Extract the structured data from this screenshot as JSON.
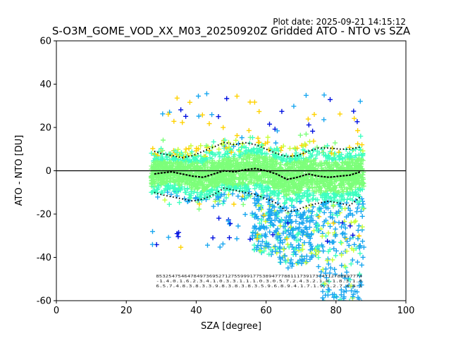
{
  "chart_data": {
    "type": "scatter",
    "title": "S-O3M_GOME_VOD_XX_M03_20250920Z Gridded ATO - NTO vs SZA",
    "plot_date": "Plot date: 2025-09-21 14:15:12",
    "xlabel": "SZA [degree]",
    "ylabel": "ATO - NTO [DU]",
    "xlim": [
      0,
      100
    ],
    "ylim": [
      -60,
      60
    ],
    "xticks": [
      0,
      20,
      40,
      60,
      80,
      100
    ],
    "yticks": [
      -60,
      -40,
      -20,
      0,
      20,
      40,
      60
    ],
    "sza_range": [
      27,
      88
    ],
    "reference_line_y": 0,
    "colors": {
      "scatter_main": "#7dff7a",
      "scatter_cyan": "#3dffc0",
      "scatter_blue": "#1aa7f0",
      "scatter_yellow": "#ffd200",
      "scatter_lime": "#c8ff3a",
      "scatter_dark": "#0010e0",
      "median_line": "#000000"
    },
    "series": [
      {
        "name": "mean",
        "x": [
          28,
          30,
          33,
          36,
          39,
          42,
          45,
          48,
          51,
          54,
          57,
          60,
          63,
          66,
          69,
          72,
          75,
          78,
          81,
          84,
          87
        ],
        "values": [
          -1.5,
          -1,
          -0.5,
          -1.5,
          -2.5,
          -3,
          -1.5,
          0,
          -0.5,
          0.5,
          1,
          0,
          -1.5,
          -4,
          -3,
          -1.5,
          -2.5,
          -3,
          -2.5,
          -2,
          -0.5
        ]
      },
      {
        "name": "upper_std",
        "x": [
          28,
          30,
          33,
          36,
          39,
          42,
          45,
          48,
          51,
          54,
          57,
          60,
          63,
          66,
          69,
          72,
          75,
          78,
          81,
          84,
          87
        ],
        "values": [
          9,
          8,
          7,
          6,
          7,
          9,
          11,
          13,
          12,
          13,
          12,
          10,
          8,
          6.5,
          7,
          9,
          10.5,
          10.5,
          10,
          10,
          11
        ]
      },
      {
        "name": "lower_std",
        "x": [
          28,
          30,
          33,
          36,
          39,
          42,
          45,
          48,
          51,
          54,
          57,
          60,
          63,
          66,
          69,
          72,
          75,
          78,
          81,
          84,
          87
        ],
        "values": [
          -10,
          -11,
          -12,
          -13,
          -14,
          -13,
          -11,
          -8,
          -9,
          -10,
          -11,
          -13,
          -15,
          -19,
          -18,
          -16,
          -15,
          -14,
          -15,
          -16,
          -12
        ]
      }
    ],
    "stats_rows": [
      "853254754647849736952712755999177538947778811173917374712788897774",
      "-1.4.0.1.6.2.3.4.1.0.3.3.1.1.1.0.3.0.5.7.2.4.3.2.1.0.1.8.3.1.0",
      "6.5.7.4.8.3.8.3.3.9.8.3.8.3.8.3.5.9.6.8.9.4.1.7.1.9.3.2.7.4.8.1"
    ]
  }
}
